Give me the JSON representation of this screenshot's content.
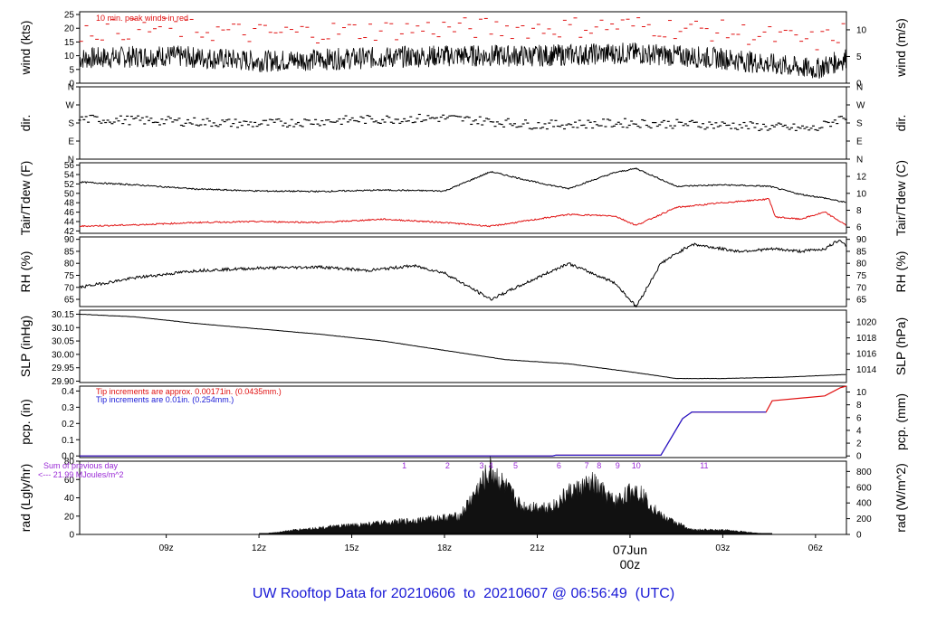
{
  "title": {
    "prefix": "UW Rooftop Data for",
    "start": "20210606",
    "to": "to",
    "end": "20210607",
    "at": "@",
    "time": "06:56:49",
    "tz": "(UTC)"
  },
  "colors": {
    "red": "#e01010",
    "blue": "#1a1ad6",
    "purple": "#9a2ad6",
    "black": "#000000"
  },
  "chart_data": [
    {
      "type": "line",
      "id": "wind",
      "ylabel_left": "wind (kts)",
      "ylabel_right": "wind (m/s)",
      "annotation": "10 min. peak winds in red",
      "yticks_left": [
        0,
        5,
        10,
        15,
        20,
        25
      ],
      "yticks_right": [
        0,
        5,
        10
      ],
      "ylim": [
        0,
        26
      ],
      "x_hours": [
        6.2,
        9,
        12,
        15,
        18,
        21,
        24,
        27,
        30,
        31.0
      ],
      "speed_kts": [
        9,
        10,
        8,
        9,
        10,
        10,
        11,
        9,
        5,
        9
      ],
      "series": [
        {
          "name": "",
          "color": "#000000"
        },
        {
          "name": "",
          "color": "#e01010"
        }
      ]
    },
    {
      "type": "scatter",
      "id": "dir",
      "ylabel_left": "dir.",
      "ylabel_right": "dir.",
      "yticks_left": [
        "N",
        "E",
        "S",
        "W",
        "N"
      ],
      "yticks_right": [
        "N",
        "E",
        "S",
        "W",
        "N"
      ],
      "ylim": [
        0,
        360
      ],
      "x_hours": [
        6.2,
        9,
        12,
        15,
        18,
        21,
        24,
        27,
        30,
        31.0
      ],
      "dir_deg": [
        200,
        190,
        175,
        195,
        205,
        170,
        180,
        170,
        150,
        215
      ]
    },
    {
      "type": "line",
      "id": "temp",
      "ylabel_left": "Tair/Tdew (F)",
      "ylabel_right": "Tair/Tdew (C)",
      "yticks_left": [
        42,
        44,
        46,
        48,
        50,
        52,
        54,
        56
      ],
      "yticks_right": [
        6,
        8,
        10,
        12
      ],
      "ylim": [
        41.5,
        56.5
      ],
      "series": [
        {
          "name": "",
          "color": "#000000",
          "x": [
            6.2,
            8,
            10,
            12,
            14,
            16,
            18,
            19.5,
            21,
            22,
            23.5,
            24.2,
            25.5,
            27,
            28.5,
            29.5,
            30.3,
            31.0
          ],
          "y": [
            52.4,
            51.8,
            50.9,
            50.5,
            50.4,
            50.7,
            50.5,
            54.6,
            52.3,
            51.0,
            54.4,
            55.3,
            51.5,
            51.8,
            51.5,
            49.8,
            49.0,
            48.0
          ]
        },
        {
          "name": "",
          "color": "#e01010",
          "x": [
            6.2,
            8,
            10,
            12,
            14,
            16,
            18,
            19.5,
            21,
            22,
            23.5,
            24.2,
            25.5,
            27,
            28.5,
            28.7,
            29.5,
            30.3,
            31.0
          ],
          "y": [
            43.0,
            43.3,
            43.8,
            44.0,
            43.8,
            44.5,
            43.8,
            43.0,
            44.5,
            45.5,
            45.2,
            43.2,
            47.0,
            48.0,
            48.8,
            45.0,
            44.5,
            46.0,
            43.2
          ]
        }
      ]
    },
    {
      "type": "line",
      "id": "rh",
      "ylabel_left": "RH (%)",
      "ylabel_right": "RH (%)",
      "yticks_left": [
        65,
        70,
        75,
        80,
        85,
        90
      ],
      "yticks_right": [
        65,
        70,
        75,
        80,
        85,
        90
      ],
      "ylim": [
        62,
        91
      ],
      "series": [
        {
          "name": "",
          "color": "#000000",
          "x": [
            6.2,
            8,
            10,
            12,
            14,
            15.5,
            17,
            18,
            19.5,
            21,
            22,
            23.5,
            24.2,
            25,
            26,
            27.5,
            28.7,
            29.5,
            30.3,
            30.8,
            31.0
          ],
          "y": [
            70,
            74,
            77,
            78,
            78.5,
            77,
            79,
            76,
            65,
            74,
            80,
            72,
            62,
            80,
            88,
            85,
            86,
            85,
            86,
            90,
            87
          ]
        }
      ]
    },
    {
      "type": "line",
      "id": "slp",
      "ylabel_left": "SLP (inHg)",
      "ylabel_right": "SLP (hPa)",
      "yticks_left": [
        29.9,
        29.95,
        30.0,
        30.05,
        30.1,
        30.15
      ],
      "yticks_right": [
        1014,
        1016,
        1018,
        1020
      ],
      "ylim": [
        29.895,
        30.165
      ],
      "series": [
        {
          "name": "",
          "color": "#000000",
          "x": [
            6.2,
            8,
            10,
            12,
            14,
            16,
            18,
            20,
            22,
            24,
            25.5,
            27,
            29,
            31.0
          ],
          "y": [
            30.15,
            30.14,
            30.115,
            30.095,
            30.075,
            30.05,
            30.015,
            29.98,
            29.965,
            29.935,
            29.91,
            29.91,
            29.915,
            29.925
          ]
        }
      ]
    },
    {
      "type": "line",
      "id": "pcp",
      "ylabel_left": "pcp. (in)",
      "ylabel_right": "pcp. (mm)",
      "note_red": "Tip increments are approx. 0.00171in. (0.0435mm.)",
      "note_blue": "Tip increments are 0.01in. (0.254mm.)",
      "yticks_left": [
        0.0,
        0.1,
        0.2,
        0.3,
        0.4
      ],
      "yticks_right": [
        0,
        2,
        4,
        6,
        8,
        10
      ],
      "ylim": [
        -0.01,
        0.43
      ],
      "series": [
        {
          "name": "",
          "color": "#e01010",
          "x": [
            6.2,
            21.5,
            21.6,
            25.0,
            25.7,
            26.0,
            28.4,
            28.6,
            30.3,
            30.8,
            31.0
          ],
          "y": [
            0,
            0,
            0.005,
            0.005,
            0.23,
            0.27,
            0.27,
            0.34,
            0.37,
            0.42,
            0.43
          ]
        },
        {
          "name": "",
          "color": "#1a1ad6",
          "x": [
            6.2,
            21.5,
            21.6,
            25.0,
            25.7,
            26.0,
            28.4
          ],
          "y": [
            0,
            0,
            0.005,
            0.005,
            0.23,
            0.27,
            0.27
          ]
        }
      ]
    },
    {
      "type": "area",
      "id": "rad",
      "ylabel_left": "rad (Lgly/hr)",
      "ylabel_right": "rad (W/m^2)",
      "sum_line1": "Sum of previous day",
      "sum_line2": "<--- 21.99 MJoules/m^2",
      "yticks_left": [
        0,
        20,
        40,
        60,
        80
      ],
      "yticks_right": [
        0,
        200,
        400,
        600,
        800
      ],
      "ylim": [
        0,
        80
      ],
      "x_hours": [
        6.2,
        12,
        13.2,
        15,
        17,
        18.5,
        19.0,
        19.5,
        20.5,
        21.5,
        22.0,
        22.8,
        23.5,
        24.2,
        25.0,
        26.0,
        27.0,
        28.6,
        31.0
      ],
      "rad_lgly": [
        0,
        0,
        5,
        10,
        15,
        20,
        45,
        70,
        30,
        30,
        45,
        55,
        35,
        50,
        20,
        5,
        5,
        0,
        0
      ],
      "sample_labels": [
        {
          "hour": 16.7,
          "label": "1"
        },
        {
          "hour": 18.1,
          "label": "2"
        },
        {
          "hour": 19.2,
          "label": "3"
        },
        {
          "hour": 19.5,
          "label": "4"
        },
        {
          "hour": 20.3,
          "label": "5"
        },
        {
          "hour": 21.7,
          "label": "6"
        },
        {
          "hour": 22.6,
          "label": "7"
        },
        {
          "hour": 23.0,
          "label": "8"
        },
        {
          "hour": 23.6,
          "label": "9"
        },
        {
          "hour": 24.2,
          "label": "10"
        },
        {
          "hour": 26.4,
          "label": "11"
        }
      ]
    }
  ],
  "xaxis": {
    "ticks": [
      {
        "hour": 9,
        "label": "09z"
      },
      {
        "hour": 12,
        "label": "12z"
      },
      {
        "hour": 15,
        "label": "15z"
      },
      {
        "hour": 18,
        "label": "18z"
      },
      {
        "hour": 21,
        "label": "21z"
      },
      {
        "hour": 24,
        "label": "00z"
      },
      {
        "hour": 27,
        "label": "03z"
      },
      {
        "hour": 30,
        "label": "06z"
      }
    ],
    "date_label": "07Jun",
    "date_time": "00z"
  }
}
